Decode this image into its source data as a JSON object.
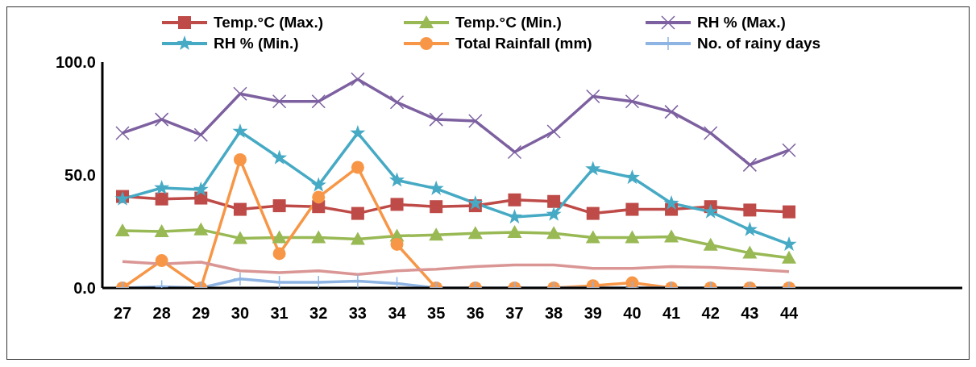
{
  "chart_data": {
    "type": "line",
    "categories": [
      "27",
      "28",
      "29",
      "30",
      "31",
      "32",
      "33",
      "34",
      "35",
      "36",
      "37",
      "38",
      "39",
      "40",
      "41",
      "42",
      "43",
      "44"
    ],
    "series": [
      {
        "name": "Temp.°C (Max.)",
        "color": "#be4b48",
        "marker": "square",
        "values": [
          40.5,
          39.4,
          39.8,
          34.8,
          36.4,
          36,
          33,
          37,
          36,
          36.4,
          39,
          38.3,
          33,
          34.8,
          34.8,
          36,
          34.5,
          33.7
        ]
      },
      {
        "name": "Temp.°C (Min.)",
        "color": "#98b954",
        "marker": "triangle",
        "values": [
          25.4,
          25,
          25.8,
          22,
          22.3,
          22.3,
          21.6,
          23,
          23.5,
          24.2,
          24.6,
          24.2,
          22.3,
          22.3,
          22.7,
          19,
          15.5,
          13.3
        ]
      },
      {
        "name": "RH % (Max.)",
        "color": "#7d60a0",
        "marker": "cross",
        "values": [
          68.6,
          74.6,
          67.8,
          86,
          82.6,
          82.6,
          92.4,
          82.2,
          74.6,
          73.9,
          60.2,
          69.3,
          84.8,
          82.6,
          78,
          68.6,
          54.5,
          61
        ]
      },
      {
        "name": "RH % (Min.)",
        "color": "#46aac5",
        "marker": "star",
        "values": [
          39.4,
          44.3,
          43.6,
          69.3,
          57.6,
          45.5,
          68.6,
          47.7,
          44,
          37.5,
          31.4,
          32.6,
          52.7,
          48.9,
          37.5,
          33.7,
          25.8,
          19.3
        ]
      },
      {
        "name": "Total Rainfall (mm)",
        "color": "#f79646",
        "marker": "circle",
        "values": [
          0,
          12.1,
          0,
          56.8,
          15.2,
          40.2,
          53.4,
          19.3,
          0,
          0,
          0,
          0,
          1,
          2.3,
          0,
          0,
          0,
          0
        ]
      },
      {
        "name": "No. of rainy days",
        "color": "#8eb4e3",
        "marker": "plus",
        "values": [
          0,
          0.5,
          0,
          4,
          2.5,
          2.5,
          3,
          2,
          0,
          0,
          0,
          0,
          0,
          0,
          0,
          0,
          0,
          0
        ]
      },
      {
        "color": "#d99694",
        "marker": "none",
        "values": [
          11.7,
          10.6,
          11.4,
          7.6,
          6.8,
          7.6,
          6,
          7.6,
          8.3,
          9.5,
          10.2,
          10.2,
          8.7,
          8.7,
          9.5,
          9.1,
          8.3,
          7.2
        ]
      }
    ],
    "ylim": [
      0,
      100
    ],
    "yticks": [
      {
        "value": 0,
        "label": "0.0"
      },
      {
        "value": 50,
        "label": "50.0"
      },
      {
        "value": 100,
        "label": "100.0"
      }
    ],
    "grid": false,
    "legend": "top"
  }
}
